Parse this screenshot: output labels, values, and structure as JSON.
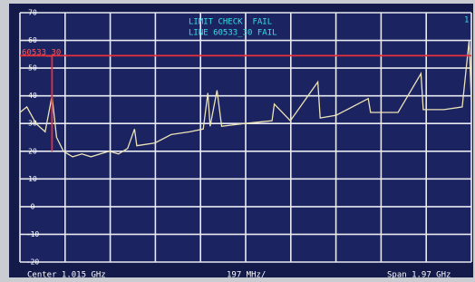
{
  "chart_data": {
    "type": "line",
    "annotations": [
      "LIMIT CHECK  FAIL",
      "LINE 60533_30 FAIL"
    ],
    "limit_label": "60533_30",
    "marker_label": "1",
    "footer": {
      "center": "Center 1.015 GHz",
      "per_div": "197 MHz/",
      "span": "Span 1.97 GHz"
    },
    "xlim": [
      0.03,
      2.0
    ],
    "ylim": [
      -20,
      70
    ],
    "yticks": [
      70,
      60,
      50,
      40,
      30,
      20,
      10,
      0,
      -10,
      -20
    ],
    "grid": true,
    "series": [
      {
        "color": "#ece3b8",
        "x": [
          0.03,
          0.06,
          0.1,
          0.14,
          0.17,
          0.19,
          0.22,
          0.26,
          0.3,
          0.34,
          0.38,
          0.42,
          0.46,
          0.5,
          0.53,
          0.54,
          0.62,
          0.69,
          0.77,
          0.83,
          0.85,
          0.86,
          0.89,
          0.91,
          1.01,
          1.13,
          1.14,
          1.21,
          1.33,
          1.34,
          1.41,
          1.55,
          1.56,
          1.68,
          1.78,
          1.79,
          1.88,
          1.96,
          1.99,
          2.0
        ],
        "values": [
          34,
          36,
          30,
          27,
          40,
          25,
          20,
          18,
          19,
          18,
          19,
          20,
          19,
          21,
          28,
          22,
          23,
          26,
          27,
          28,
          41,
          29,
          42,
          29,
          30,
          31,
          37,
          31,
          45,
          32,
          33,
          39,
          34,
          34,
          48,
          35,
          35,
          36,
          60,
          38
        ]
      },
      {
        "color": "#e8303a",
        "x": [
          0.03,
          0.17,
          0.17,
          0.17,
          2.0
        ],
        "values": [
          54.5,
          54.5,
          20,
          54.5,
          54.5
        ]
      }
    ]
  }
}
